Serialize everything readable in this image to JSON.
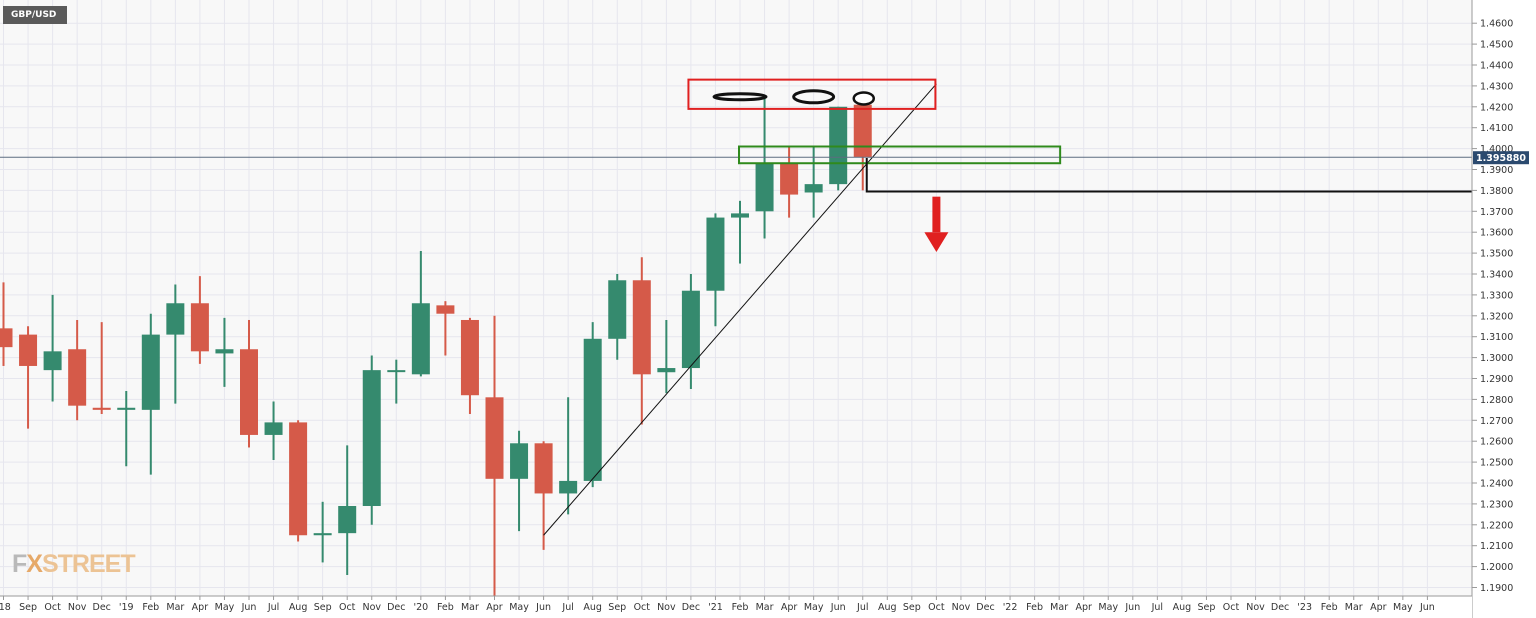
{
  "symbol": "GBP/USD",
  "watermark": {
    "part1": "F",
    "part2": "X",
    "part3": "STREET"
  },
  "current_price": "1.395880",
  "colors": {
    "up": "#358a6e",
    "down": "#d55a49",
    "grid": "#e6e6ee",
    "price_badge": "#2b4a6f",
    "annotation_red": "#e02020",
    "annotation_green": "#2f8a1c"
  },
  "chart_data": {
    "type": "candlestick",
    "timeframe": "monthly",
    "ylim": [
      1.185,
      1.465
    ],
    "y_ticks": [
      "1.1900",
      "1.2000",
      "1.2100",
      "1.2200",
      "1.2300",
      "1.2400",
      "1.2500",
      "1.2600",
      "1.2700",
      "1.2800",
      "1.2900",
      "1.3000",
      "1.3100",
      "1.3200",
      "1.3300",
      "1.3400",
      "1.3500",
      "1.3600",
      "1.3700",
      "1.3800",
      "1.3900",
      "1.4000",
      "1.4100",
      "1.4200",
      "1.4300",
      "1.4400",
      "1.4500",
      "1.4600"
    ],
    "x_labels": [
      "'18",
      "Sep",
      "Oct",
      "Nov",
      "Dec",
      "'19",
      "Feb",
      "Mar",
      "Apr",
      "May",
      "Jun",
      "Jul",
      "Aug",
      "Sep",
      "Oct",
      "Nov",
      "Dec",
      "'20",
      "Feb",
      "Mar",
      "Apr",
      "May",
      "Jun",
      "Jul",
      "Aug",
      "Sep",
      "Oct",
      "Nov",
      "Dec",
      "'21",
      "Feb",
      "Mar",
      "Apr",
      "May",
      "Jun",
      "Jul",
      "Aug",
      "Sep",
      "Oct",
      "Nov",
      "Dec",
      "'22",
      "Feb",
      "Mar",
      "Apr",
      "May",
      "Jun",
      "Jul",
      "Aug",
      "Sep",
      "Oct",
      "Nov",
      "Dec",
      "'23",
      "Feb",
      "Mar",
      "Apr",
      "May",
      "Jun"
    ],
    "candles": [
      {
        "t": "2018-08",
        "o": 1.314,
        "h": 1.336,
        "l": 1.296,
        "c": 1.305
      },
      {
        "t": "2018-09",
        "o": 1.311,
        "h": 1.315,
        "l": 1.266,
        "c": 1.296
      },
      {
        "t": "2018-10",
        "o": 1.294,
        "h": 1.33,
        "l": 1.279,
        "c": 1.303
      },
      {
        "t": "2018-11",
        "o": 1.304,
        "h": 1.318,
        "l": 1.27,
        "c": 1.277
      },
      {
        "t": "2018-12",
        "o": 1.276,
        "h": 1.317,
        "l": 1.273,
        "c": 1.275
      },
      {
        "t": "2019-01",
        "o": 1.275,
        "h": 1.284,
        "l": 1.248,
        "c": 1.276
      },
      {
        "t": "2019-02",
        "o": 1.275,
        "h": 1.321,
        "l": 1.244,
        "c": 1.311
      },
      {
        "t": "2019-03",
        "o": 1.311,
        "h": 1.335,
        "l": 1.278,
        "c": 1.326
      },
      {
        "t": "2019-04",
        "o": 1.326,
        "h": 1.339,
        "l": 1.297,
        "c": 1.303
      },
      {
        "t": "2019-05",
        "o": 1.302,
        "h": 1.319,
        "l": 1.286,
        "c": 1.304
      },
      {
        "t": "2019-06",
        "o": 1.304,
        "h": 1.318,
        "l": 1.257,
        "c": 1.263
      },
      {
        "t": "2019-07",
        "o": 1.263,
        "h": 1.279,
        "l": 1.251,
        "c": 1.269
      },
      {
        "t": "2019-08",
        "o": 1.269,
        "h": 1.27,
        "l": 1.212,
        "c": 1.215
      },
      {
        "t": "2019-09",
        "o": 1.215,
        "h": 1.231,
        "l": 1.202,
        "c": 1.216
      },
      {
        "t": "2019-10",
        "o": 1.216,
        "h": 1.258,
        "l": 1.196,
        "c": 1.229
      },
      {
        "t": "2019-11",
        "o": 1.229,
        "h": 1.301,
        "l": 1.22,
        "c": 1.294
      },
      {
        "t": "2019-12",
        "o": 1.294,
        "h": 1.299,
        "l": 1.278,
        "c": 1.294
      },
      {
        "t": "2020-01",
        "o": 1.292,
        "h": 1.351,
        "l": 1.291,
        "c": 1.326
      },
      {
        "t": "2020-02",
        "o": 1.325,
        "h": 1.327,
        "l": 1.301,
        "c": 1.321
      },
      {
        "t": "2020-03",
        "o": 1.318,
        "h": 1.319,
        "l": 1.273,
        "c": 1.282
      },
      {
        "t": "2020-04",
        "o": 1.281,
        "h": 1.32,
        "l": 1.186,
        "c": 1.242
      },
      {
        "t": "2020-05",
        "o": 1.242,
        "h": 1.265,
        "l": 1.217,
        "c": 1.259
      },
      {
        "t": "2020-06",
        "o": 1.259,
        "h": 1.26,
        "l": 1.208,
        "c": 1.235
      },
      {
        "t": "2020-07",
        "o": 1.235,
        "h": 1.281,
        "l": 1.225,
        "c": 1.241
      },
      {
        "t": "2020-08",
        "o": 1.241,
        "h": 1.317,
        "l": 1.238,
        "c": 1.309
      },
      {
        "t": "2020-09",
        "o": 1.309,
        "h": 1.34,
        "l": 1.299,
        "c": 1.337
      },
      {
        "t": "2020-10",
        "o": 1.337,
        "h": 1.348,
        "l": 1.268,
        "c": 1.292
      },
      {
        "t": "2020-11",
        "o": 1.293,
        "h": 1.318,
        "l": 1.283,
        "c": 1.295
      },
      {
        "t": "2020-12",
        "o": 1.295,
        "h": 1.34,
        "l": 1.285,
        "c": 1.332
      },
      {
        "t": "2021-01",
        "o": 1.332,
        "h": 1.369,
        "l": 1.315,
        "c": 1.367
      },
      {
        "t": "2021-02",
        "o": 1.367,
        "h": 1.375,
        "l": 1.345,
        "c": 1.369
      },
      {
        "t": "2021-03",
        "o": 1.37,
        "h": 1.424,
        "l": 1.357,
        "c": 1.393
      },
      {
        "t": "2021-04",
        "o": 1.393,
        "h": 1.401,
        "l": 1.367,
        "c": 1.378
      },
      {
        "t": "2021-05",
        "o": 1.379,
        "h": 1.401,
        "l": 1.367,
        "c": 1.383
      },
      {
        "t": "2021-06",
        "o": 1.383,
        "h": 1.42,
        "l": 1.38,
        "c": 1.42
      },
      {
        "t": "2021-07",
        "o": 1.421,
        "h": 1.422,
        "l": 1.38,
        "c": 1.396
      }
    ],
    "current_price": 1.39588
  }
}
